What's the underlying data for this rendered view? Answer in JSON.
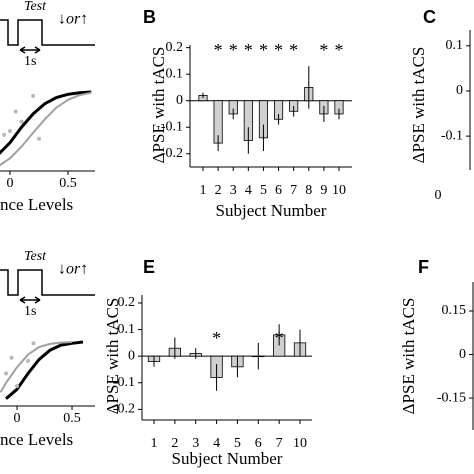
{
  "chart_data": [
    {
      "type": "line",
      "xlabel": "nce Levels",
      "schematic": {
        "label": "Test",
        "duration": "1s",
        "response": "↓or↑"
      },
      "xlim": [
        -0.086,
        0.733
      ],
      "xticks": [
        0,
        0.5
      ],
      "ylim": [
        0,
        1
      ],
      "series": [
        {
          "color": "#000000",
          "x": [
            -0.1,
            0,
            0.1,
            0.2,
            0.3,
            0.4,
            0.5,
            0.6,
            0.7
          ],
          "values": [
            0.2,
            0.35,
            0.55,
            0.72,
            0.85,
            0.93,
            0.97,
            0.99,
            1
          ]
        },
        {
          "color": "#a0a0a0",
          "x": [
            -0.1,
            0,
            0.1,
            0.2,
            0.3,
            0.4,
            0.5,
            0.6,
            0.7
          ],
          "values": [
            0.05,
            0.15,
            0.3,
            0.48,
            0.65,
            0.8,
            0.9,
            0.96,
            0.99
          ]
        },
        {
          "color": "#b8b8b8",
          "marker": true,
          "x": [
            -0.05,
            0,
            0.05,
            0.1,
            0.2,
            0.25
          ],
          "values": [
            0.45,
            0.5,
            0.75,
            0.62,
            0.95,
            0.4
          ]
        }
      ]
    },
    {
      "type": "bar",
      "panel": "B",
      "xlabel": "Subject Number",
      "ylabel": "ΔPSE with tACS",
      "categories": [
        "1",
        "2",
        "3",
        "4",
        "5",
        "6",
        "7",
        "8",
        "9",
        "10"
      ],
      "values": [
        0.02,
        -0.16,
        -0.05,
        -0.15,
        -0.14,
        -0.07,
        -0.04,
        0.05,
        -0.05,
        -0.05
      ],
      "errors": [
        0.01,
        0.03,
        0.02,
        0.05,
        0.05,
        0.02,
        0.02,
        0.08,
        0.03,
        0.02
      ],
      "color": "#d0d0d0",
      "ylim": [
        -0.25,
        0.21
      ],
      "yticks": [
        0.2,
        0.1,
        0,
        -0.1,
        -0.2
      ],
      "annotations": [
        {
          "text": "*",
          "category": "2"
        },
        {
          "text": "*",
          "category": "3"
        },
        {
          "text": "*",
          "category": "4"
        },
        {
          "text": "*",
          "category": "5"
        },
        {
          "text": "*",
          "category": "6"
        },
        {
          "text": "*",
          "category": "7"
        },
        {
          "text": "*",
          "category": "9"
        },
        {
          "text": "*",
          "category": "10"
        }
      ]
    },
    {
      "type": "bar",
      "panel": "C",
      "ylabel": "ΔPSE with tACS",
      "ylim": [
        -0.175,
        0.135
      ],
      "yticks": [
        0.1,
        0,
        -0.1
      ],
      "xticks": [
        0
      ]
    },
    {
      "type": "line",
      "xlabel": "nce Levels",
      "schematic": {
        "label": "Test",
        "duration": "1s",
        "response": "↓or↑"
      },
      "xlim": [
        -0.155,
        0.709
      ],
      "xticks": [
        0,
        0.5
      ],
      "ylim": [
        0,
        1
      ],
      "series": [
        {
          "color": "#000000",
          "x": [
            -0.1,
            0,
            0.1,
            0.2,
            0.3,
            0.4,
            0.5,
            0.6
          ],
          "values": [
            0.1,
            0.25,
            0.5,
            0.72,
            0.87,
            0.95,
            0.98,
            1
          ]
        },
        {
          "color": "#a0a0a0",
          "x": [
            -0.15,
            -0.1,
            0,
            0.1,
            0.2,
            0.3,
            0.4,
            0.5
          ],
          "values": [
            0.2,
            0.35,
            0.6,
            0.8,
            0.92,
            0.97,
            0.99,
            1
          ]
        },
        {
          "color": "#b8b8b8",
          "marker": true,
          "x": [
            -0.1,
            -0.05,
            0,
            0.1,
            0.15
          ],
          "values": [
            0.5,
            0.75,
            0.3,
            0.7,
            0.98
          ]
        }
      ]
    },
    {
      "type": "bar",
      "panel": "E",
      "xlabel": "Subject Number",
      "ylabel": "ΔPSE with tACS",
      "categories": [
        "1",
        "2",
        "3",
        "4",
        "5",
        "6",
        "7",
        "10"
      ],
      "values": [
        -0.02,
        0.03,
        0.01,
        -0.08,
        -0.04,
        0,
        0.08,
        0.05
      ],
      "errors": [
        0.02,
        0.04,
        0.02,
        0.05,
        0.04,
        0.05,
        0.04,
        0.05
      ],
      "color": "#d0d0d0",
      "ylim": [
        -0.24,
        0.23
      ],
      "yticks": [
        0.2,
        0.1,
        0,
        -0.1,
        -0.2
      ],
      "annotations": [
        {
          "text": "*",
          "category": "4"
        },
        {
          "text": "*",
          "category": "7"
        }
      ]
    },
    {
      "type": "bar",
      "panel": "F",
      "ylabel": "ΔPSE with tACS",
      "ylim": [
        -0.26,
        0.25
      ],
      "yticks": [
        0.15,
        0,
        -0.15
      ]
    }
  ]
}
